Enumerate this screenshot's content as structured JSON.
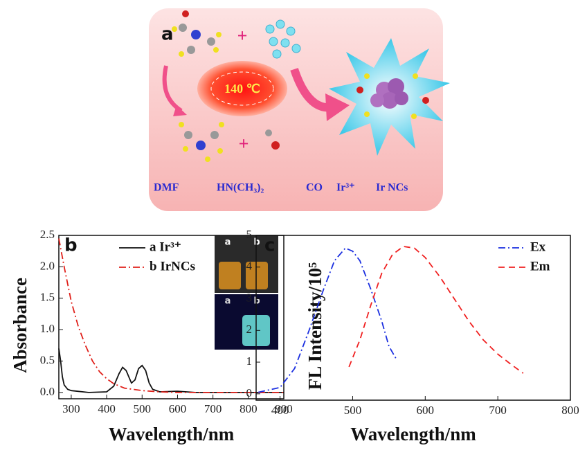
{
  "schematic": {
    "panel_label": "a",
    "temperature": "140 ℃",
    "plus_signs": [
      "+",
      "+"
    ],
    "legend": [
      "DMF",
      "HN(CH₃)₂",
      "CO",
      "Ir³⁺",
      "Ir NCs"
    ]
  },
  "chart_data": [
    {
      "type": "line",
      "panel_label": "b",
      "xlabel": "Wavelength/nm",
      "ylabel": "Absorbance",
      "xlim": [
        265,
        900
      ],
      "xticks": [
        300,
        400,
        500,
        600,
        700,
        800,
        900
      ],
      "ylim": [
        -0.1,
        2.5
      ],
      "yticks": [
        {
          "value": 0,
          "label": "0.0"
        },
        0.5,
        {
          "value": 1,
          "label": "1.0"
        },
        1.5,
        {
          "value": 2,
          "label": "2.0"
        },
        2.5
      ],
      "annotations": [
        "a",
        "b",
        "a",
        "b"
      ],
      "series": [
        {
          "name": "a Ir³⁺",
          "color": "#111111",
          "dash": "solid",
          "x": [
            265,
            270,
            275,
            280,
            290,
            300,
            350,
            400,
            420,
            435,
            445,
            455,
            470,
            480,
            490,
            500,
            510,
            520,
            530,
            550,
            600,
            650,
            900
          ],
          "values": [
            0.7,
            0.5,
            0.25,
            0.12,
            0.05,
            0.03,
            0,
            0.01,
            0.1,
            0.3,
            0.4,
            0.35,
            0.15,
            0.2,
            0.38,
            0.43,
            0.35,
            0.15,
            0.05,
            0.01,
            0.02,
            0,
            0
          ]
        },
        {
          "name": "b IrNCs",
          "color": "#e0201a",
          "dash": "dashdot",
          "x": [
            265,
            280,
            300,
            320,
            340,
            360,
            380,
            400,
            420,
            450,
            500,
            550,
            600,
            900
          ],
          "values": [
            2.45,
            2.0,
            1.45,
            1.05,
            0.75,
            0.5,
            0.33,
            0.22,
            0.14,
            0.07,
            0.03,
            0.01,
            0,
            0
          ]
        }
      ]
    },
    {
      "type": "line",
      "panel_label": "c",
      "xlabel": "Wavelength/nm",
      "ylabel": "FL Intensity/10⁵",
      "xlim": [
        367,
        800
      ],
      "xticks": [
        400,
        500,
        600,
        700,
        800
      ],
      "ylim": [
        -0.2,
        5
      ],
      "yticks": [
        0,
        1,
        2,
        3,
        4,
        5
      ],
      "series": [
        {
          "name": "Ex",
          "color": "#1a2ee0",
          "dash": "dashdot",
          "x": [
            370,
            400,
            420,
            440,
            460,
            475,
            490,
            500,
            510,
            525,
            540,
            550,
            560
          ],
          "values": [
            0.05,
            0.2,
            0.8,
            2.0,
            3.3,
            4.2,
            4.6,
            4.5,
            4.2,
            3.3,
            2.3,
            1.5,
            1.1
          ]
        },
        {
          "name": "Em",
          "color": "#f02020",
          "dash": "dashed",
          "x": [
            495,
            510,
            525,
            540,
            555,
            570,
            585,
            600,
            620,
            640,
            660,
            680,
            700,
            720,
            735
          ],
          "values": [
            0.85,
            1.7,
            2.8,
            3.8,
            4.4,
            4.65,
            4.6,
            4.3,
            3.7,
            3.0,
            2.3,
            1.7,
            1.25,
            0.9,
            0.65
          ]
        }
      ]
    }
  ]
}
